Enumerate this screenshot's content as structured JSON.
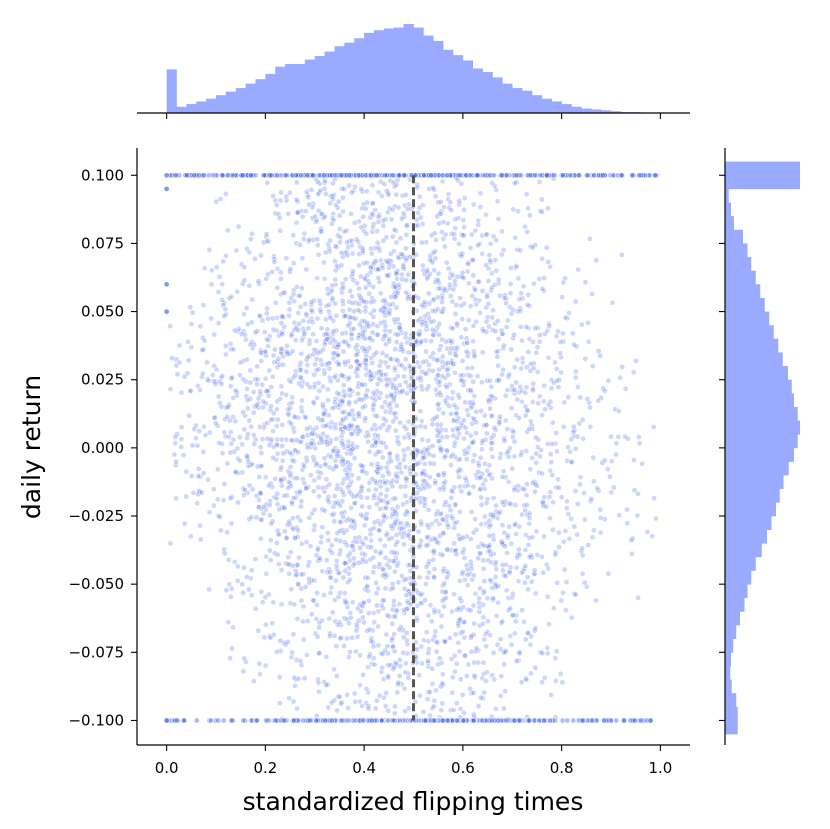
{
  "chart_data": {
    "type": "scatter",
    "title": "",
    "xlabel": "standardized flipping times",
    "ylabel": "daily return",
    "xlim": [
      -0.06,
      1.06
    ],
    "ylim": [
      -0.109,
      0.11
    ],
    "x_ticks": [
      0.0,
      0.2,
      0.4,
      0.6,
      0.8,
      1.0
    ],
    "x_tick_labels": [
      "0.0",
      "0.2",
      "0.4",
      "0.6",
      "0.8",
      "1.0"
    ],
    "y_ticks": [
      -0.1,
      -0.075,
      -0.05,
      -0.025,
      0.0,
      0.025,
      0.05,
      0.075,
      0.1
    ],
    "y_tick_labels": [
      "−0.100",
      "−0.075",
      "−0.050",
      "−0.025",
      "0.000",
      "0.025",
      "0.050",
      "0.075",
      "0.100"
    ],
    "grid": false,
    "legend": "none",
    "colors": {
      "points": "#4a6cf0",
      "histogram": "#9aaafe",
      "reference_line": "#555555"
    },
    "reference_line": {
      "x": 0.5,
      "y_range": [
        -0.1,
        0.1
      ],
      "style": "dashed"
    },
    "marginal_x_histogram": {
      "bin_edges": [
        0.0,
        0.02,
        0.04,
        0.06,
        0.08,
        0.1,
        0.12,
        0.14,
        0.16,
        0.18,
        0.2,
        0.22,
        0.24,
        0.26,
        0.28,
        0.3,
        0.32,
        0.34,
        0.36,
        0.38,
        0.4,
        0.42,
        0.44,
        0.46,
        0.48,
        0.5,
        0.52,
        0.54,
        0.56,
        0.58,
        0.6,
        0.62,
        0.64,
        0.66,
        0.68,
        0.7,
        0.72,
        0.74,
        0.76,
        0.78,
        0.8,
        0.82,
        0.84,
        0.86,
        0.88,
        0.9,
        0.92,
        0.94,
        0.96,
        0.98,
        1.0
      ],
      "relative_heights": [
        0.49,
        0.07,
        0.1,
        0.13,
        0.16,
        0.2,
        0.24,
        0.28,
        0.33,
        0.38,
        0.44,
        0.52,
        0.55,
        0.55,
        0.6,
        0.64,
        0.69,
        0.75,
        0.79,
        0.84,
        0.9,
        0.93,
        0.95,
        0.96,
        1.0,
        0.96,
        0.87,
        0.81,
        0.71,
        0.65,
        0.59,
        0.5,
        0.46,
        0.4,
        0.33,
        0.28,
        0.25,
        0.2,
        0.16,
        0.13,
        0.1,
        0.07,
        0.05,
        0.04,
        0.03,
        0.02,
        0.01,
        0.01,
        0.005,
        0.003
      ]
    },
    "marginal_y_histogram": {
      "bin_edges": [
        -0.105,
        -0.095,
        -0.09,
        -0.085,
        -0.08,
        -0.075,
        -0.07,
        -0.065,
        -0.06,
        -0.055,
        -0.05,
        -0.045,
        -0.04,
        -0.035,
        -0.03,
        -0.025,
        -0.02,
        -0.015,
        -0.01,
        -0.005,
        0.0,
        0.005,
        0.01,
        0.015,
        0.02,
        0.025,
        0.03,
        0.035,
        0.04,
        0.045,
        0.05,
        0.055,
        0.06,
        0.065,
        0.07,
        0.075,
        0.08,
        0.085,
        0.09,
        0.095,
        0.105
      ],
      "relative_heights": [
        0.17,
        0.15,
        0.09,
        0.07,
        0.08,
        0.11,
        0.15,
        0.2,
        0.26,
        0.3,
        0.35,
        0.41,
        0.49,
        0.56,
        0.62,
        0.68,
        0.73,
        0.78,
        0.85,
        0.92,
        0.97,
        1.0,
        0.97,
        0.92,
        0.89,
        0.84,
        0.77,
        0.71,
        0.65,
        0.59,
        0.53,
        0.47,
        0.41,
        0.35,
        0.3,
        0.24,
        0.12,
        0.08,
        0.05,
        1.0
      ]
    }
  }
}
